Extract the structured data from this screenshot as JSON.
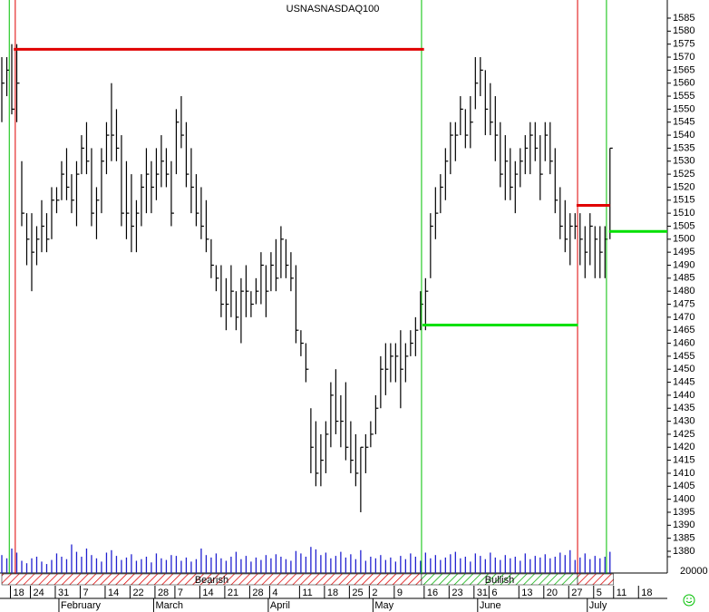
{
  "chart_data": {
    "type": "ohlc",
    "title": "USNASNASDAQ100",
    "high": [
      1570,
      1570,
      1575,
      1575,
      1530,
      1510,
      1510,
      1505,
      1515,
      1510,
      1520,
      1520,
      1530,
      1535,
      1525,
      1530,
      1540,
      1545,
      1535,
      1520,
      1535,
      1545,
      1560,
      1550,
      1540,
      1530,
      1525,
      1515,
      1525,
      1535,
      1530,
      1535,
      1540,
      1535,
      1530,
      1550,
      1555,
      1545,
      1535,
      1525,
      1520,
      1515,
      1500,
      1490,
      1490,
      1485,
      1490,
      1480,
      1485,
      1490,
      1480,
      1485,
      1495,
      1490,
      1495,
      1500,
      1505,
      1500,
      1495,
      1490,
      1465,
      1460,
      1435,
      1430,
      1425,
      1430,
      1445,
      1450,
      1440,
      1445,
      1430,
      1425,
      1420,
      1425,
      1430,
      1440,
      1455,
      1460,
      1460,
      1460,
      1465,
      1460,
      1465,
      1470,
      1480,
      1485,
      1510,
      1520,
      1525,
      1535,
      1545,
      1545,
      1555,
      1550,
      1555,
      1570,
      1570,
      1565,
      1560,
      1555,
      1545,
      1540,
      1535,
      1530,
      1535,
      1540,
      1545,
      1545,
      1540,
      1545,
      1545,
      1535,
      1520,
      1515,
      1510,
      1510,
      1510,
      1505,
      1510,
      1505,
      1505,
      1505,
      1535
    ],
    "low": [
      1545,
      1555,
      1548,
      1545,
      1505,
      1490,
      1480,
      1490,
      1495,
      1495,
      1500,
      1510,
      1515,
      1515,
      1510,
      1505,
      1525,
      1525,
      1505,
      1500,
      1510,
      1525,
      1530,
      1530,
      1505,
      1500,
      1495,
      1495,
      1505,
      1510,
      1510,
      1515,
      1520,
      1520,
      1505,
      1525,
      1535,
      1520,
      1510,
      1505,
      1500,
      1495,
      1485,
      1480,
      1470,
      1465,
      1470,
      1465,
      1460,
      1470,
      1470,
      1475,
      1475,
      1470,
      1480,
      1480,
      1485,
      1485,
      1480,
      1460,
      1455,
      1445,
      1410,
      1405,
      1405,
      1410,
      1420,
      1425,
      1420,
      1415,
      1410,
      1405,
      1395,
      1410,
      1420,
      1425,
      1435,
      1440,
      1445,
      1445,
      1435,
      1445,
      1455,
      1455,
      1465,
      1465,
      1485,
      1500,
      1510,
      1515,
      1525,
      1530,
      1540,
      1535,
      1535,
      1550,
      1555,
      1540,
      1540,
      1530,
      1520,
      1515,
      1515,
      1510,
      1520,
      1525,
      1525,
      1530,
      1515,
      1530,
      1525,
      1510,
      1500,
      1495,
      1490,
      1500,
      1490,
      1485,
      1490,
      1485,
      1485,
      1485,
      1500
    ],
    "close": [
      1560,
      1565,
      1550,
      1560,
      1510,
      1500,
      1495,
      1500,
      1505,
      1500,
      1515,
      1515,
      1525,
      1520,
      1515,
      1525,
      1535,
      1530,
      1510,
      1515,
      1530,
      1540,
      1540,
      1535,
      1510,
      1510,
      1505,
      1510,
      1520,
      1525,
      1520,
      1525,
      1530,
      1525,
      1510,
      1545,
      1540,
      1525,
      1520,
      1510,
      1505,
      1500,
      1490,
      1485,
      1475,
      1475,
      1480,
      1470,
      1480,
      1480,
      1475,
      1480,
      1490,
      1480,
      1490,
      1485,
      1500,
      1490,
      1485,
      1465,
      1460,
      1450,
      1420,
      1410,
      1415,
      1425,
      1440,
      1430,
      1430,
      1420,
      1415,
      1410,
      1420,
      1420,
      1425,
      1435,
      1450,
      1450,
      1455,
      1455,
      1450,
      1455,
      1460,
      1465,
      1475,
      1480,
      1505,
      1510,
      1520,
      1530,
      1540,
      1540,
      1550,
      1540,
      1545,
      1560,
      1565,
      1550,
      1545,
      1540,
      1525,
      1530,
      1520,
      1525,
      1530,
      1535,
      1540,
      1535,
      1525,
      1540,
      1530,
      1515,
      1505,
      1500,
      1505,
      1505,
      1500,
      1495,
      1505,
      1500,
      1495,
      1500,
      1535
    ],
    "volume": [
      22000,
      18000,
      30000,
      25000,
      15000,
      12000,
      18000,
      20000,
      14000,
      11000,
      16000,
      24000,
      20000,
      17000,
      35000,
      26000,
      20000,
      30000,
      22000,
      18000,
      14000,
      25000,
      28000,
      21000,
      16000,
      19000,
      23000,
      15000,
      17000,
      20000,
      13000,
      24000,
      18000,
      16000,
      22000,
      21000,
      15000,
      19000,
      14000,
      17000,
      30000,
      22000,
      19000,
      24000,
      18000,
      15000,
      20000,
      26000,
      17000,
      21000,
      14000,
      19000,
      16000,
      22000,
      18000,
      23000,
      20000,
      17000,
      15000,
      27000,
      24000,
      20000,
      32000,
      29000,
      22000,
      25000,
      18000,
      21000,
      26000,
      19000,
      23000,
      17000,
      28000,
      15000,
      20000,
      18000,
      22000,
      16000,
      19000,
      14000,
      21000,
      17000,
      24000,
      20000,
      15000,
      25000,
      18000,
      22000,
      16000,
      19000,
      23000,
      26000,
      18000,
      20000,
      14000,
      24000,
      21000,
      17000,
      25000,
      19000,
      16000,
      22000,
      18000,
      20000,
      15000,
      24000,
      17000,
      21000,
      19000,
      23000,
      18000,
      20000,
      25000,
      22000,
      28000,
      16000,
      19000,
      24000,
      17000,
      21000,
      18000,
      20000,
      26000
    ],
    "bar_color": "#000000",
    "volume_color": "#2020d0",
    "xlim": [
      0,
      133.5
    ],
    "xticks": [
      {
        "value": 3,
        "label": "18"
      },
      {
        "value": 7,
        "label": "24"
      },
      {
        "value": 12,
        "label": "31"
      },
      {
        "value": 17,
        "label": "7"
      },
      {
        "value": 22,
        "label": "14"
      },
      {
        "value": 27,
        "label": "22"
      },
      {
        "value": 32,
        "label": "28"
      },
      {
        "value": 36,
        "label": "7"
      },
      {
        "value": 41,
        "label": "14"
      },
      {
        "value": 46,
        "label": "21"
      },
      {
        "value": 51,
        "label": "28"
      },
      {
        "value": 55,
        "label": "4"
      },
      {
        "value": 61,
        "label": "11"
      },
      {
        "value": 66,
        "label": "18"
      },
      {
        "value": 71,
        "label": "25"
      },
      {
        "value": 75,
        "label": "2"
      },
      {
        "value": 80,
        "label": "9"
      },
      {
        "value": 86,
        "label": "16"
      },
      {
        "value": 91,
        "label": "23"
      },
      {
        "value": 96,
        "label": "31"
      },
      {
        "value": 99,
        "label": "6"
      },
      {
        "value": 105,
        "label": "13"
      },
      {
        "value": 110,
        "label": "20"
      },
      {
        "value": 115,
        "label": "27"
      },
      {
        "value": 120,
        "label": "5"
      },
      {
        "value": 124,
        "label": "11"
      },
      {
        "value": 129,
        "label": "18"
      }
    ],
    "months": [
      {
        "value": 12,
        "label": "February"
      },
      {
        "value": 31,
        "label": "March"
      },
      {
        "value": 54,
        "label": "April"
      },
      {
        "value": 75,
        "label": "May"
      },
      {
        "value": 96,
        "label": "June"
      },
      {
        "value": 118,
        "label": "July"
      }
    ],
    "ylim": [
      1380,
      1585
    ],
    "yticks": [
      1380,
      1385,
      1390,
      1395,
      1400,
      1405,
      1410,
      1415,
      1420,
      1425,
      1430,
      1435,
      1440,
      1445,
      1450,
      1455,
      1460,
      1465,
      1470,
      1475,
      1480,
      1485,
      1490,
      1495,
      1500,
      1505,
      1510,
      1515,
      1520,
      1525,
      1530,
      1535,
      1540,
      1545,
      1550,
      1555,
      1560,
      1565,
      1570,
      1575,
      1580,
      1585
    ],
    "volume_ylim": [
      0,
      40000
    ],
    "volume_yticks": [
      20000
    ],
    "levels": [
      {
        "value": 1573,
        "start": 2.4,
        "end": 84.7,
        "color": "#e00000"
      },
      {
        "value": 1467,
        "start": 84.4,
        "end": 115.6,
        "color": "#00e000"
      },
      {
        "value": 1513,
        "start": 115.3,
        "end": 122,
        "color": "#e00000"
      },
      {
        "value": 1503,
        "start": 121.8,
        "end": 133.5,
        "color": "#00e000"
      }
    ],
    "vlines": [
      {
        "value": 1.5,
        "color": "#00c000"
      },
      {
        "value": 2.7,
        "color": "#e00000"
      },
      {
        "value": 84.2,
        "color": "#00c000"
      },
      {
        "value": 115.5,
        "color": "#e00000"
      },
      {
        "value": 121.3,
        "color": "#00c000"
      }
    ],
    "bands": [
      {
        "start": 0,
        "end": 84.2,
        "label": "Bearish",
        "color": "red"
      },
      {
        "start": 84.2,
        "end": 115.5,
        "label": "Bullish",
        "color": "green"
      },
      {
        "start": 115.5,
        "end": 122.7,
        "color": "red"
      }
    ]
  }
}
